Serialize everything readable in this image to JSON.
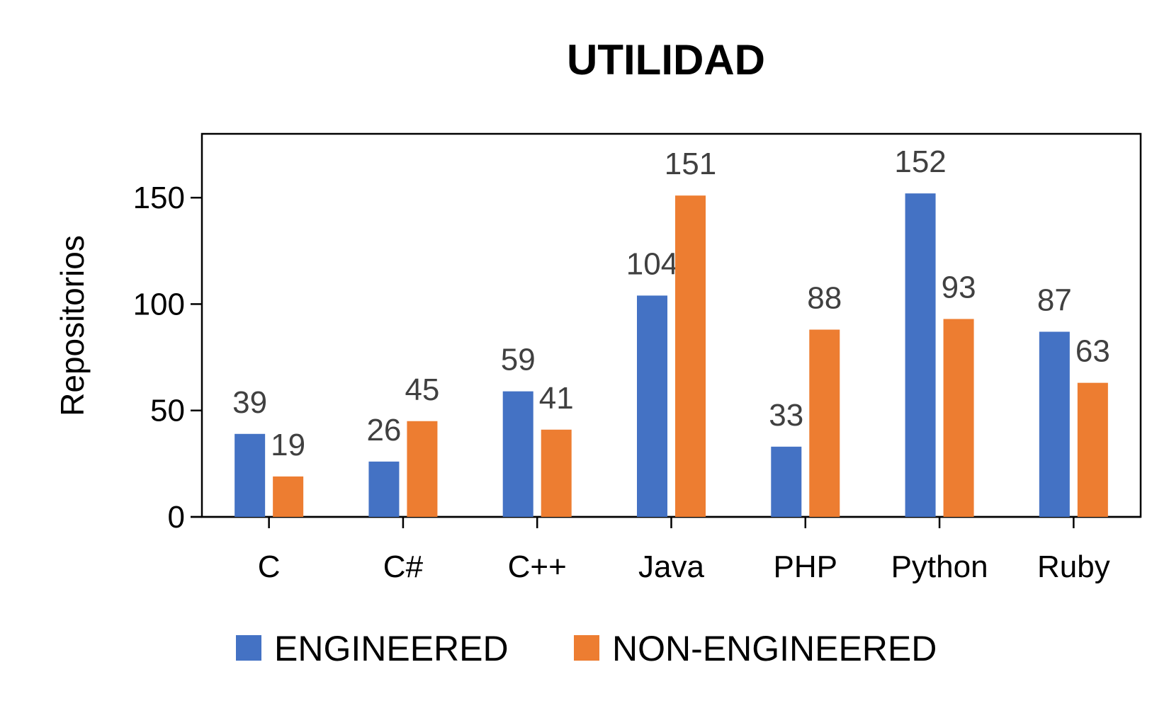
{
  "chart_data": {
    "type": "bar",
    "title": "UTILIDAD",
    "xlabel": "",
    "ylabel": "Repositorios",
    "ylim": [
      0,
      180
    ],
    "yticks": [
      0,
      50,
      100,
      150
    ],
    "categories": [
      "C",
      "C#",
      "C++",
      "Java",
      "PHP",
      "Python",
      "Ruby"
    ],
    "series": [
      {
        "name": "ENGINEERED",
        "color": "#4472C4",
        "values": [
          39,
          26,
          59,
          104,
          33,
          152,
          87
        ]
      },
      {
        "name": "NON-ENGINEERED",
        "color": "#ED7D31",
        "values": [
          19,
          45,
          41,
          151,
          88,
          93,
          63
        ]
      }
    ],
    "grid": false,
    "legend": "bottom",
    "data_labels": true
  }
}
